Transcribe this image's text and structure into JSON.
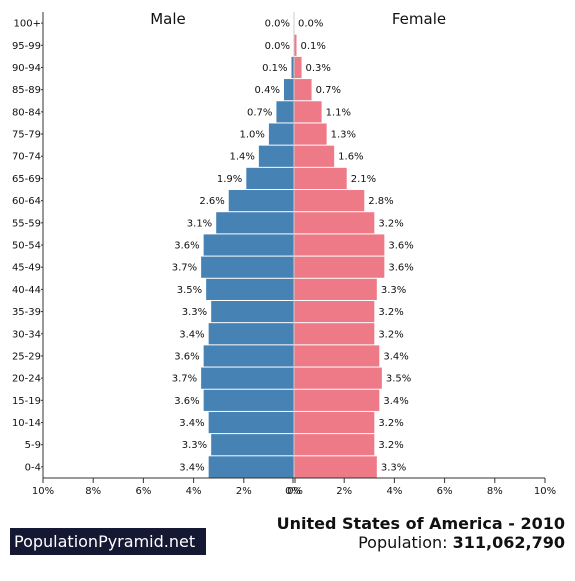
{
  "chart_data": {
    "type": "bar",
    "orientation": "horizontal-population-pyramid",
    "title": "United States of America - 2010",
    "population_label": "Population:",
    "population_value": "311,062,790",
    "categories": [
      "0-4",
      "5-9",
      "10-14",
      "15-19",
      "20-24",
      "25-29",
      "30-34",
      "35-39",
      "40-44",
      "45-49",
      "50-54",
      "55-59",
      "60-64",
      "65-69",
      "70-74",
      "75-79",
      "80-84",
      "85-89",
      "90-94",
      "95-99",
      "100+"
    ],
    "series": [
      {
        "name": "Male",
        "color": "#4682b4",
        "values": [
          3.4,
          3.3,
          3.4,
          3.6,
          3.7,
          3.6,
          3.4,
          3.3,
          3.5,
          3.7,
          3.6,
          3.1,
          2.6,
          1.9,
          1.4,
          1.0,
          0.7,
          0.4,
          0.1,
          0.0,
          0.0
        ],
        "labels": [
          "3.4%",
          "3.3%",
          "3.4%",
          "3.6%",
          "3.7%",
          "3.6%",
          "3.4%",
          "3.3%",
          "3.5%",
          "3.7%",
          "3.6%",
          "3.1%",
          "2.6%",
          "1.9%",
          "1.4%",
          "1.0%",
          "0.7%",
          "0.4%",
          "0.1%",
          "0.0%",
          "0.0%"
        ]
      },
      {
        "name": "Female",
        "color": "#ef7a87",
        "values": [
          3.3,
          3.2,
          3.2,
          3.4,
          3.5,
          3.4,
          3.2,
          3.2,
          3.3,
          3.6,
          3.6,
          3.2,
          2.8,
          2.1,
          1.6,
          1.3,
          1.1,
          0.7,
          0.3,
          0.1,
          0.0
        ],
        "labels": [
          "3.3%",
          "3.2%",
          "3.2%",
          "3.4%",
          "3.5%",
          "3.4%",
          "3.2%",
          "3.2%",
          "3.3%",
          "3.6%",
          "3.6%",
          "3.2%",
          "2.8%",
          "2.1%",
          "1.6%",
          "1.3%",
          "1.1%",
          "0.7%",
          "0.3%",
          "0.1%",
          "0.0%"
        ]
      }
    ],
    "x_ticks": [
      "10%",
      "8%",
      "6%",
      "4%",
      "2%",
      "0%",
      "0%",
      "2%",
      "4%",
      "6%",
      "8%",
      "10%"
    ],
    "xlim": [
      -10,
      10
    ],
    "grid": false
  },
  "branding": {
    "site": "PopulationPyramid.net"
  }
}
